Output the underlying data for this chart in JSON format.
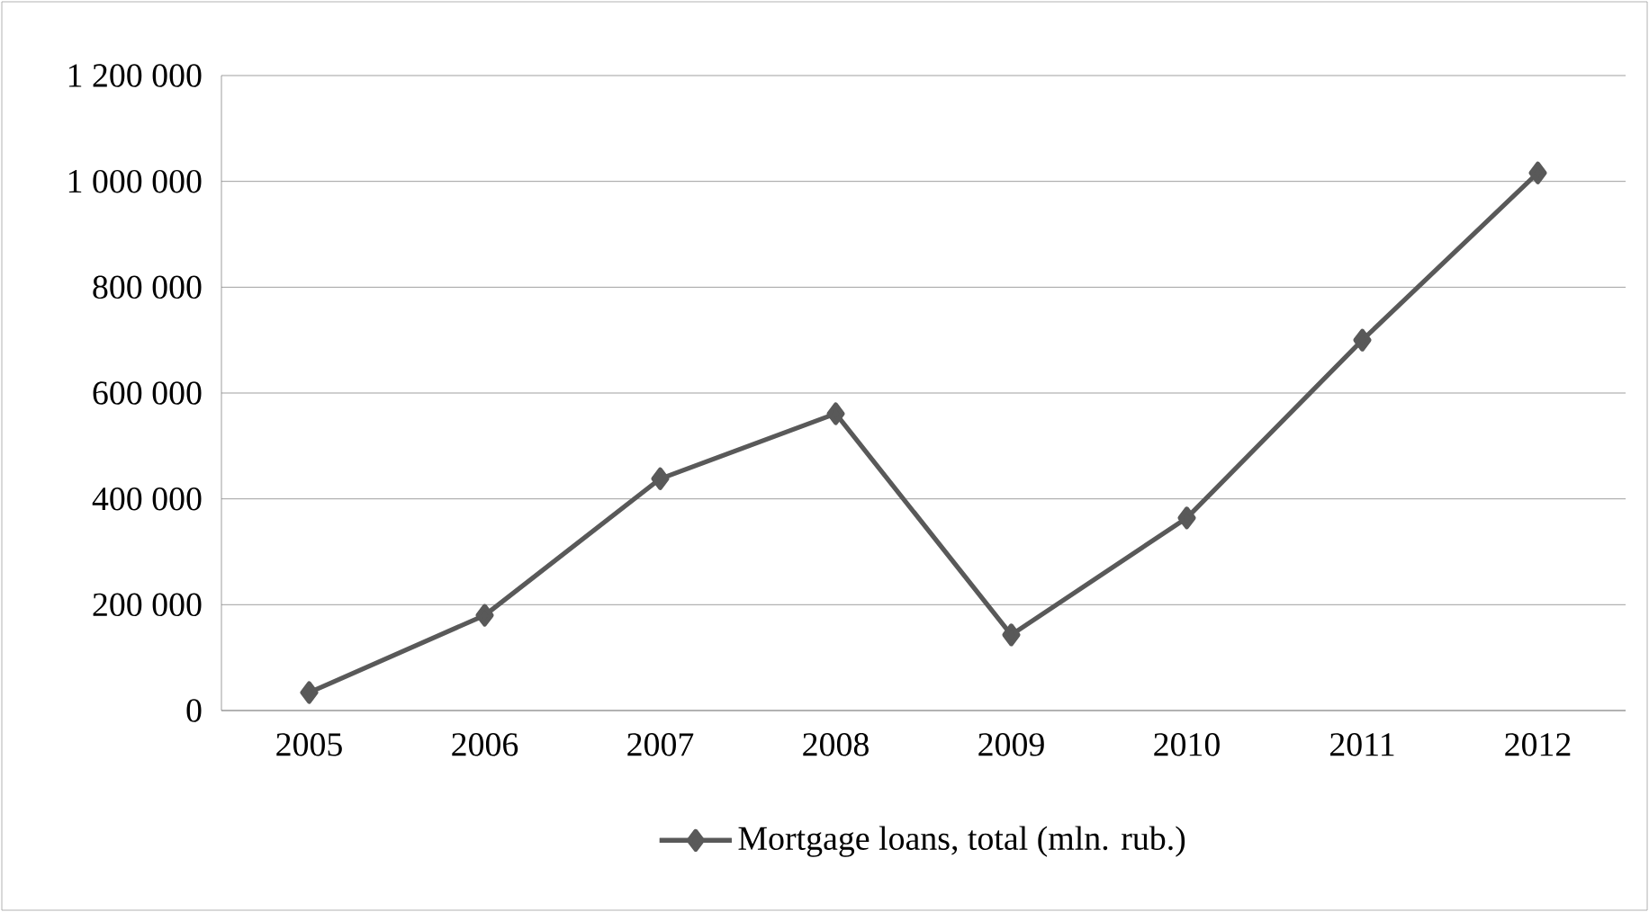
{
  "chart_data": {
    "type": "line",
    "categories": [
      "2005",
      "2006",
      "2007",
      "2008",
      "2009",
      "2010",
      "2011",
      "2012"
    ],
    "series": [
      {
        "name": "Mortgage loans, total (mln. rub.)",
        "color": "#595959",
        "values": [
          34000,
          180000,
          438000,
          561000,
          143000,
          364000,
          700000,
          1016000
        ]
      }
    ],
    "ylim": [
      0,
      1200000
    ],
    "yticks": [
      0,
      {
        "value": 200000,
        "label": "200 000"
      },
      {
        "value": 400000,
        "label": "400 000"
      },
      {
        "value": 600000,
        "label": "600 000"
      },
      {
        "value": 800000,
        "label": "800 000"
      },
      {
        "value": 1000000,
        "label": "1 000 000"
      },
      {
        "value": 1200000,
        "label": "1 200 000"
      }
    ],
    "grid": "y",
    "legend": "bottom",
    "marker": "diamond",
    "line_style": "solid"
  }
}
